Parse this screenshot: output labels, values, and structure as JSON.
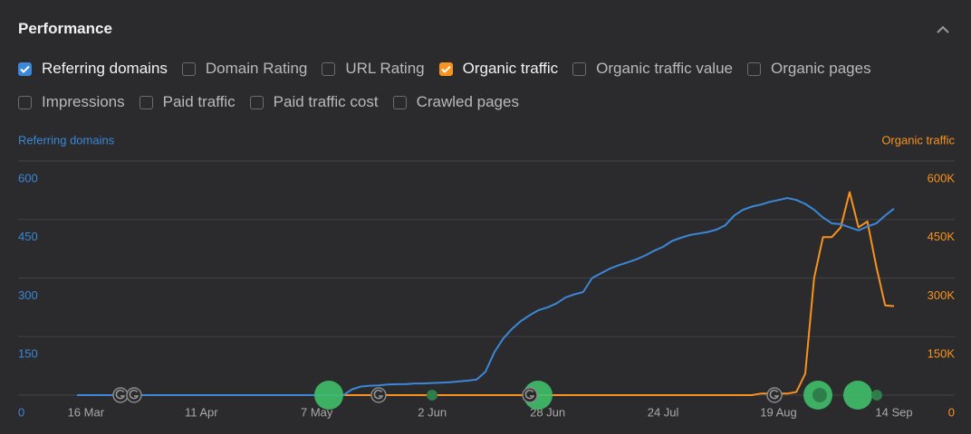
{
  "header": {
    "title": "Performance"
  },
  "metric_rows": [
    [
      {
        "label": "Referring domains",
        "checked": true,
        "color": "#3b87d8"
      },
      {
        "label": "Domain Rating",
        "checked": false
      },
      {
        "label": "URL Rating",
        "checked": false
      },
      {
        "label": "Organic traffic",
        "checked": true,
        "color": "#f7931e"
      },
      {
        "label": "Organic traffic value",
        "checked": false
      },
      {
        "label": "Organic pages",
        "checked": false
      }
    ],
    [
      {
        "label": "Impressions",
        "checked": false
      },
      {
        "label": "Paid traffic",
        "checked": false
      },
      {
        "label": "Paid traffic cost",
        "checked": false
      },
      {
        "label": "Crawled pages",
        "checked": false
      }
    ]
  ],
  "chart_data": {
    "type": "line",
    "x": [
      "14 Mar",
      "16 Mar",
      "18 Mar",
      "20 Mar",
      "22 Mar",
      "24 Mar",
      "26 Mar",
      "28 Mar",
      "30 Mar",
      "1 Apr",
      "3 Apr",
      "5 Apr",
      "7 Apr",
      "9 Apr",
      "11 Apr",
      "13 Apr",
      "15 Apr",
      "17 Apr",
      "19 Apr",
      "21 Apr",
      "23 Apr",
      "25 Apr",
      "27 Apr",
      "29 Apr",
      "1 May",
      "3 May",
      "5 May",
      "7 May",
      "9 May",
      "11 May",
      "13 May",
      "15 May",
      "17 May",
      "19 May",
      "21 May",
      "23 May",
      "25 May",
      "27 May",
      "29 May",
      "31 May",
      "2 Jun",
      "4 Jun",
      "6 Jun",
      "8 Jun",
      "10 Jun",
      "12 Jun",
      "14 Jun",
      "16 Jun",
      "18 Jun",
      "20 Jun",
      "22 Jun",
      "24 Jun",
      "26 Jun",
      "28 Jun",
      "30 Jun",
      "2 Jul",
      "4 Jul",
      "6 Jul",
      "8 Jul",
      "10 Jul",
      "12 Jul",
      "14 Jul",
      "16 Jul",
      "18 Jul",
      "20 Jul",
      "22 Jul",
      "24 Jul",
      "26 Jul",
      "28 Jul",
      "30 Jul",
      "1 Aug",
      "3 Aug",
      "5 Aug",
      "7 Aug",
      "9 Aug",
      "11 Aug",
      "13 Aug",
      "15 Aug",
      "17 Aug",
      "19 Aug",
      "21 Aug",
      "23 Aug",
      "25 Aug",
      "27 Aug",
      "29 Aug",
      "31 Aug",
      "2 Sep",
      "4 Sep",
      "6 Sep",
      "8 Sep",
      "10 Sep",
      "12 Sep",
      "14 Sep"
    ],
    "xticks": [
      "16 Mar",
      "11 Apr",
      "7 May",
      "2 Jun",
      "28 Jun",
      "24 Jul",
      "19 Aug",
      "14 Sep"
    ],
    "series": [
      {
        "name": "Referring domains",
        "color": "#3b87d8",
        "values": [
          0,
          0,
          0,
          0,
          0,
          0,
          0,
          0,
          0,
          0,
          0,
          0,
          0,
          0,
          0,
          0,
          0,
          0,
          0,
          0,
          0,
          0,
          0,
          0,
          0,
          0,
          0,
          0,
          0,
          0,
          0,
          15,
          22,
          24,
          25,
          27,
          28,
          28,
          30,
          30,
          31,
          32,
          33,
          35,
          37,
          40,
          60,
          110,
          145,
          170,
          190,
          205,
          218,
          225,
          235,
          250,
          258,
          264,
          300,
          312,
          324,
          333,
          340,
          348,
          358,
          370,
          380,
          395,
          403,
          410,
          414,
          418,
          424,
          435,
          460,
          475,
          483,
          488,
          495,
          500,
          505,
          500,
          490,
          475,
          455,
          440,
          438,
          430,
          422,
          432,
          440,
          460,
          478
        ]
      },
      {
        "name": "Organic traffic",
        "color": "#f7931e",
        "axis": "y2",
        "values": [
          0,
          0,
          0,
          0,
          0,
          0,
          0,
          0,
          0,
          0,
          0,
          0,
          0,
          0,
          0,
          0,
          0,
          0,
          0,
          0,
          0,
          0,
          0,
          0,
          0,
          0,
          0,
          0,
          0,
          0,
          0,
          0,
          0,
          0,
          0,
          0,
          0,
          0,
          0,
          0,
          0,
          0,
          0,
          0,
          0,
          0,
          0,
          0,
          0,
          0,
          0,
          0,
          0,
          0,
          0,
          0,
          0,
          0,
          0,
          0,
          0,
          0,
          0,
          0,
          0,
          0,
          0,
          0,
          0,
          0,
          0,
          0,
          0,
          0,
          0,
          0,
          0,
          4000,
          4000,
          4000,
          4000,
          8000,
          55000,
          300000,
          405000,
          405000,
          430000,
          520000,
          430000,
          445000,
          330000,
          230000,
          228000
        ]
      }
    ],
    "ylim": [
      0,
      600
    ],
    "yticks": [
      0,
      150,
      300,
      450,
      600
    ],
    "y2lim": [
      0,
      600000
    ],
    "y2ticks": [
      0,
      {
        "value": 150000,
        "label": "150K"
      },
      {
        "value": 300000,
        "label": "300K"
      },
      {
        "value": 450000,
        "label": "450K"
      },
      {
        "value": 600000,
        "label": "600K"
      }
    ],
    "grid": true
  }
}
